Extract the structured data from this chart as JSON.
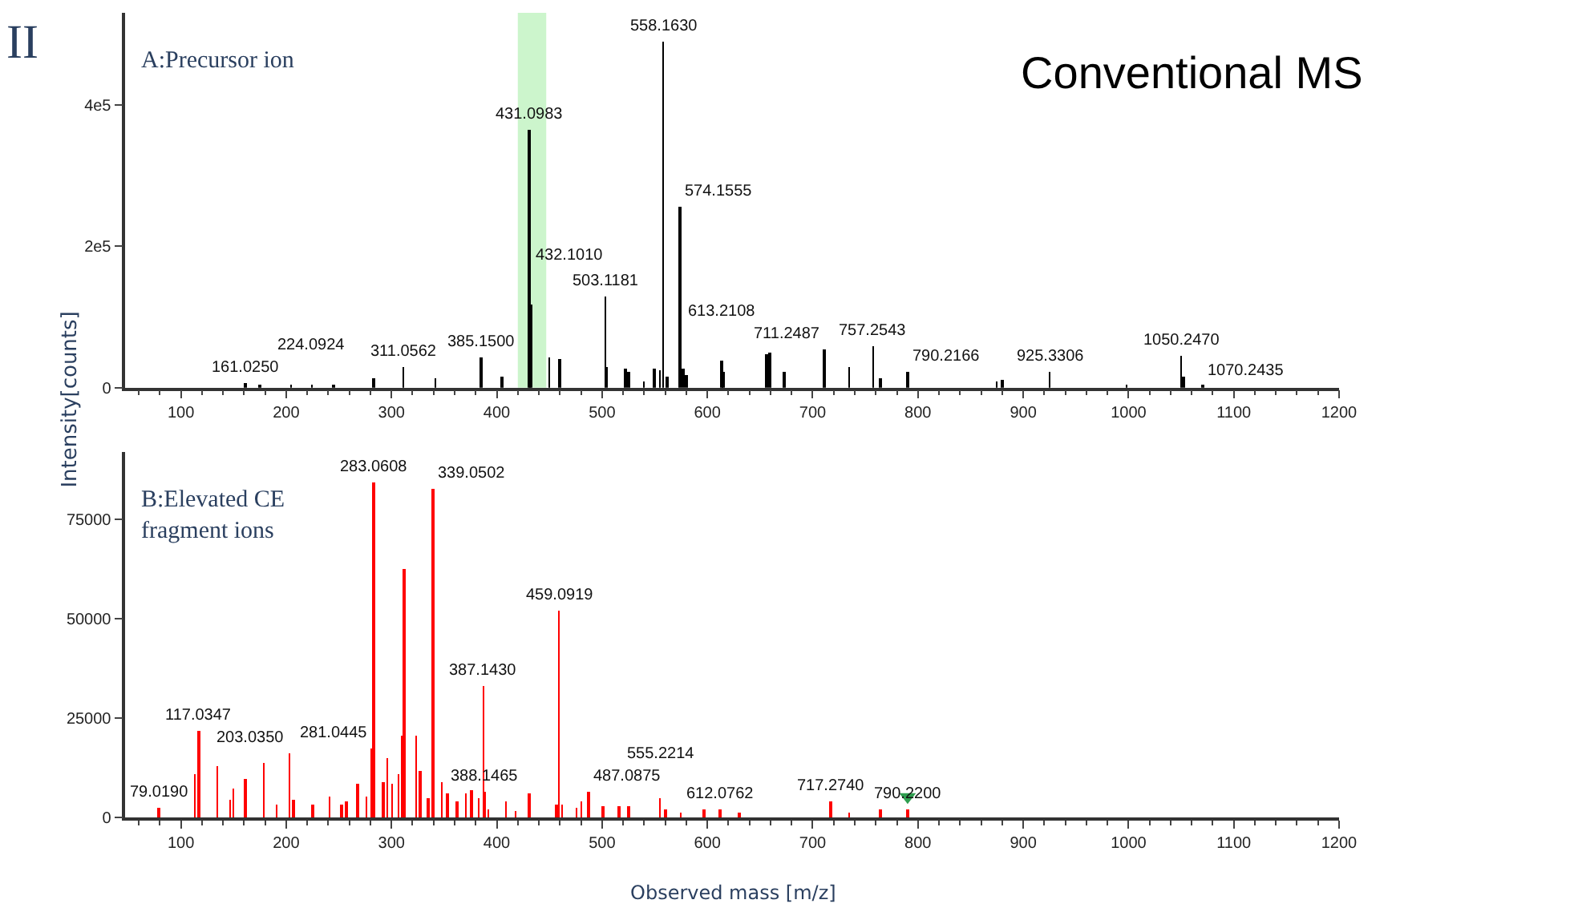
{
  "chart_data": [
    {
      "type": "bar",
      "title": "Conventional MS",
      "ylabel": "Intensity[counts]",
      "annotations": [
        "II",
        "A:Precursor ion",
        {
          "text": "558.1630",
          "x": 558.163,
          "y": 490000
        },
        {
          "text": "431.0983",
          "x": 431.0983,
          "y": 365000
        },
        {
          "text": "574.1555",
          "x": 574.1555,
          "y": 255000
        },
        {
          "text": "503.1181",
          "x": 503.1181,
          "y": 129000
        },
        {
          "text": "432.1010",
          "x": 432.101,
          "y": 117000
        },
        {
          "text": "757.2543",
          "x": 757.2543,
          "y": 59000
        },
        {
          "text": "711.2487",
          "x": 711.2487,
          "y": 54000
        },
        {
          "text": "1050.2470",
          "x": 1050.247,
          "y": 46000
        },
        {
          "text": "385.1500",
          "x": 385.15,
          "y": 44000
        },
        {
          "text": "613.2108",
          "x": 613.2108,
          "y": 38000
        },
        {
          "text": "311.0562",
          "x": 311.0562,
          "y": 30000
        },
        {
          "text": "790.2166",
          "x": 790.2166,
          "y": 23000
        },
        {
          "text": "925.3306",
          "x": 925.3306,
          "y": 23000
        },
        {
          "text": "161.0250",
          "x": 161.025,
          "y": 6000
        },
        {
          "text": "224.0924",
          "x": 224.0924,
          "y": 5000
        },
        {
          "text": "1070.2435",
          "x": 1070.2435,
          "y": 3000
        }
      ],
      "series": [
        {
          "color": "#000000",
          "x": [
            161.025,
            175,
            205,
            224.0924,
            245,
            283,
            311.0562,
            341.7,
            385.15,
            404.7,
            431.0983,
            432.101,
            450,
            459.5,
            503.1181,
            505,
            522,
            525,
            540,
            550,
            555,
            558.163,
            562,
            574.1555,
            577,
            580,
            613.2108,
            615,
            656,
            659,
            673,
            711.2487,
            735,
            757.2543,
            764.7,
            790.2166,
            875,
            880,
            925.3306,
            998,
            1050.247,
            1052,
            1070.2435
          ],
          "values": [
            6000,
            5000,
            5000,
            5000,
            4000,
            14000,
            30000,
            14000,
            44000,
            16000,
            365000,
            117000,
            44000,
            41000,
            129000,
            30000,
            27000,
            22000,
            10000,
            28000,
            24000,
            490000,
            15000,
            255000,
            27000,
            18000,
            38000,
            22000,
            48000,
            50000,
            23000,
            54000,
            29000,
            59000,
            13000,
            23000,
            8000,
            12000,
            23000,
            4000,
            46000,
            15000,
            3000
          ]
        }
      ],
      "bands": [
        {
          "axis": "x",
          "from": 420,
          "to": 447,
          "color": "#ccf5cc"
        }
      ],
      "xlim": [
        47,
        1200
      ],
      "xticks": [
        100,
        200,
        300,
        400,
        500,
        600,
        700,
        800,
        900,
        1000,
        1100,
        1200
      ],
      "ylim": [
        0,
        530000
      ],
      "yticks": [
        0,
        {
          "value": 200000,
          "label": "2e5"
        },
        {
          "value": 400000,
          "label": "4e5"
        }
      ]
    },
    {
      "type": "bar",
      "xlabel": "Observed mass [m/z]",
      "annotations": [
        "B:Elevated CE\nfragment ions",
        {
          "text": "283.0608",
          "x": 283.0608,
          "y": 84500
        },
        {
          "text": "339.0502",
          "x": 339.0502,
          "y": 82700
        },
        {
          "text": "459.0919",
          "x": 459.0919,
          "y": 52200
        },
        {
          "text": "387.1430",
          "x": 387.143,
          "y": 33200
        },
        {
          "text": "117.0347",
          "x": 117.0347,
          "y": 21900
        },
        {
          "text": "281.0445",
          "x": 281.0445,
          "y": 17400
        },
        {
          "text": "203.0350",
          "x": 203.035,
          "y": 16000
        },
        {
          "text": "388.1465",
          "x": 388.1465,
          "y": 6400
        },
        {
          "text": "487.0875",
          "x": 487.0875,
          "y": 6400
        },
        {
          "text": "555.2214",
          "x": 555.2214,
          "y": 4900
        },
        {
          "text": "717.2740",
          "x": 717.274,
          "y": 4000
        },
        {
          "text": "79.0190",
          "x": 79.019,
          "y": 2400
        },
        {
          "text": "612.0762",
          "x": 612.0762,
          "y": 2000
        },
        {
          "text": "790.2200",
          "x": 790.22,
          "y": 2000
        }
      ],
      "series": [
        {
          "color": "#ff0000",
          "x": [
            79.019,
            113,
            117.0347,
            134.6,
            147,
            150,
            161,
            179,
            191,
            203.035,
            207,
            225,
            241,
            253,
            257,
            268,
            276,
            281.0445,
            283.0608,
            292,
            296,
            300.5,
            307,
            309.9,
            312.3,
            323.4,
            327.5,
            335,
            339.0502,
            348,
            353,
            362,
            371,
            376,
            383,
            387.143,
            388.1465,
            392,
            409,
            418,
            431,
            457,
            459.0919,
            462,
            476,
            480,
            487.0875,
            500.5,
            516,
            525,
            555.2214,
            560,
            575,
            597,
            612.0762,
            630,
            717.274,
            735,
            764,
            790.22
          ],
          "values": [
            2400,
            10700,
            21900,
            12700,
            4500,
            7100,
            9600,
            13600,
            3000,
            16000,
            4500,
            3000,
            5300,
            3000,
            4000,
            8300,
            5300,
            17400,
            84500,
            9000,
            14700,
            8300,
            10700,
            20400,
            62600,
            20500,
            11700,
            5000,
            82700,
            8700,
            6000,
            4000,
            6200,
            6700,
            5000,
            33200,
            6400,
            2000,
            4000,
            1500,
            5900,
            3000,
            52200,
            3000,
            2500,
            4000,
            6400,
            2800,
            2800,
            2800,
            4900,
            2000,
            1000,
            2000,
            2000,
            1200,
            4000,
            1200,
            2000,
            2000
          ]
        },
        {
          "type": "scatter",
          "color": "#2e9e4f",
          "marker": "triangle",
          "x": [
            790.22
          ],
          "values": [
            5200
          ]
        }
      ],
      "xlim": [
        47,
        1200
      ],
      "xticks": [
        100,
        200,
        300,
        400,
        500,
        600,
        700,
        800,
        900,
        1000,
        1100,
        1200
      ],
      "ylim": [
        0,
        92000
      ],
      "yticks": [
        0,
        25000,
        50000,
        75000
      ]
    }
  ]
}
